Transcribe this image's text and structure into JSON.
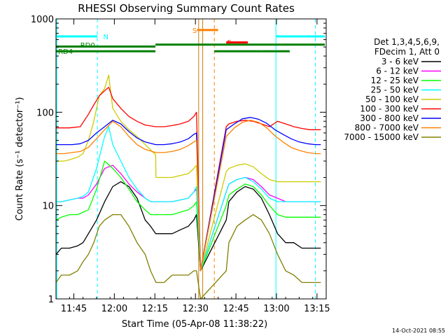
{
  "title": "RHESSI Observing Summary Count Rates",
  "footer_date": "14-Oct-2021 08:55",
  "legend": {
    "header_line1": "Det 1,3,4,5,6,9,",
    "header_line2": "FDecim 1, Att 0"
  },
  "chart_data": {
    "type": "line",
    "title": "RHESSI Observing Summary Count Rates",
    "xlabel": "Start Time (05-Apr-08 11:38:22)",
    "ylabel": "Count Rate (s⁻¹ detector⁻¹)",
    "x_unit": "minutes since 11:38:22",
    "xlim": [
      0,
      100
    ],
    "ylim": [
      1,
      1000
    ],
    "y_scale": "log",
    "x_ticks": [
      {
        "label": "11:45",
        "x": 6.6
      },
      {
        "label": "12:00",
        "x": 21.6
      },
      {
        "label": "12:15",
        "x": 36.6
      },
      {
        "label": "12:30",
        "x": 51.6
      },
      {
        "label": "12:45",
        "x": 66.6
      },
      {
        "label": "13:00",
        "x": 81.6
      },
      {
        "label": "13:15",
        "x": 96.6
      }
    ],
    "y_ticks": [
      {
        "label": "1",
        "y": 1
      },
      {
        "label": "10",
        "y": 10
      },
      {
        "label": "100",
        "y": 100
      },
      {
        "label": "1000",
        "y": 1000
      }
    ],
    "series": [
      {
        "name": "3 - 6 keV",
        "color": "#000000",
        "x": [
          0,
          2,
          5,
          8,
          10,
          12,
          15,
          18,
          21,
          24,
          27,
          30,
          33,
          35,
          36.9,
          37,
          40,
          43,
          46,
          49,
          51,
          52,
          53.5,
          63,
          64,
          67,
          70,
          73,
          76,
          79,
          82,
          85,
          88,
          91,
          94,
          97,
          98
        ],
        "y": [
          3,
          3.5,
          3.5,
          3.7,
          4,
          5,
          7,
          11,
          16,
          18,
          16,
          12,
          7,
          6,
          5,
          5,
          5,
          5,
          5.5,
          6,
          7,
          8,
          2,
          7,
          11,
          14,
          16,
          15,
          12,
          8,
          5,
          4,
          4,
          3.5,
          3.5,
          3.5,
          3.5
        ]
      },
      {
        "name": "6 - 12 keV",
        "color": "#ff00ff",
        "x": [
          0,
          2,
          5,
          8,
          10,
          12,
          15,
          18,
          21,
          24,
          27,
          30,
          33,
          35,
          36.9,
          37,
          40,
          43,
          46,
          49,
          51,
          52,
          53.5,
          63,
          64,
          67,
          70,
          73,
          76,
          79,
          82,
          85,
          88,
          91,
          94,
          97,
          98
        ],
        "y": [
          11,
          11,
          11.5,
          12,
          12,
          13,
          17,
          25,
          27,
          22,
          17,
          14,
          12,
          11,
          11,
          11,
          11,
          11,
          11.5,
          12,
          14,
          15,
          2,
          14,
          17,
          19,
          20,
          19,
          16,
          13,
          12,
          11,
          11,
          11,
          11,
          11,
          11
        ]
      },
      {
        "name": "12 - 25 keV",
        "color": "#00ff00",
        "x": [
          0,
          2,
          5,
          8,
          10,
          12,
          15,
          18,
          21,
          24,
          27,
          30,
          33,
          35,
          36.9,
          37,
          40,
          43,
          46,
          49,
          51,
          52,
          53.5,
          63,
          64,
          67,
          70,
          73,
          76,
          79,
          82,
          85,
          88,
          91,
          94,
          97,
          98
        ],
        "y": [
          7,
          7.5,
          8,
          8,
          8.5,
          9,
          15,
          30,
          25,
          20,
          15,
          11,
          9,
          8,
          8,
          8,
          8,
          8,
          8.5,
          9,
          10,
          11,
          2,
          10,
          13,
          15,
          17,
          16,
          13,
          10,
          8,
          7.5,
          7.5,
          7.5,
          7.5,
          7.5,
          7.5
        ]
      },
      {
        "name": "25 - 50 keV",
        "color": "#00ffff",
        "x": [
          0,
          2,
          5,
          8,
          10,
          12,
          15,
          18,
          19.5,
          21,
          24,
          27,
          30,
          33,
          35,
          36.9,
          37,
          40,
          43,
          46,
          49,
          51,
          52,
          53.5,
          63,
          64,
          67,
          70,
          73,
          76,
          79,
          82,
          85,
          88,
          91,
          94,
          97,
          98
        ],
        "y": [
          11,
          11,
          11.5,
          12,
          12.5,
          14,
          25,
          55,
          70,
          45,
          30,
          20,
          15,
          12,
          11,
          11,
          11,
          11,
          11,
          11.5,
          12,
          14,
          16,
          2,
          14,
          17,
          19,
          20,
          18,
          15,
          12,
          11,
          11,
          11,
          11,
          11,
          11,
          11
        ]
      },
      {
        "name": "50 - 100 keV",
        "color": "#cccc00",
        "x": [
          0,
          3,
          5,
          8,
          10,
          12,
          14,
          16,
          18,
          19.5,
          21,
          24,
          27,
          30,
          33,
          36.9,
          37,
          40,
          43,
          46,
          49,
          51,
          52,
          53.5,
          63,
          64,
          67,
          70,
          73,
          76,
          79,
          82,
          85,
          88,
          91,
          94,
          97,
          98
        ],
        "y": [
          30,
          30,
          31,
          33,
          36,
          50,
          80,
          150,
          180,
          250,
          110,
          80,
          65,
          55,
          45,
          35,
          20,
          20,
          20,
          21,
          22,
          25,
          27,
          2,
          23,
          25,
          27,
          28,
          26,
          22,
          19,
          18,
          18,
          18,
          18,
          18,
          18,
          18
        ]
      },
      {
        "name": "100 - 300 keV",
        "color": "#ff0000",
        "x": [
          0,
          2,
          5,
          7,
          9,
          12,
          14,
          16,
          18,
          19.5,
          21,
          24,
          27,
          30,
          33,
          36.9,
          37,
          40,
          43,
          46,
          49,
          51,
          52,
          53.5,
          63,
          64,
          67,
          70,
          73,
          76,
          79,
          82,
          85,
          88,
          91,
          94,
          97,
          98
        ],
        "y": [
          68,
          68,
          68,
          69,
          70,
          95,
          120,
          150,
          170,
          185,
          140,
          110,
          90,
          80,
          73,
          70,
          70,
          70,
          72,
          75,
          80,
          90,
          100,
          2,
          70,
          75,
          80,
          82,
          80,
          75,
          70,
          80,
          75,
          70,
          67,
          65,
          65,
          65
        ]
      },
      {
        "name": "300 - 800 keV",
        "color": "#0000ff",
        "x": [
          0,
          3,
          6,
          9,
          12,
          15,
          18,
          21,
          24,
          27,
          30,
          33,
          36.9,
          40,
          43,
          46,
          49,
          51,
          52,
          53.5,
          63,
          66,
          69,
          72,
          75,
          78,
          81,
          84,
          87,
          90,
          93,
          96,
          98
        ],
        "y": [
          45,
          45,
          45,
          46,
          50,
          60,
          70,
          82,
          75,
          62,
          53,
          48,
          45,
          45,
          46,
          48,
          52,
          58,
          60,
          2,
          65,
          75,
          85,
          88,
          84,
          76,
          65,
          58,
          52,
          48,
          46,
          45,
          45
        ]
      },
      {
        "name": "800 - 7000 keV",
        "color": "#ff8000",
        "x": [
          0,
          3,
          6,
          9,
          12,
          15,
          18,
          21,
          24,
          27,
          30,
          33,
          36.9,
          40,
          43,
          46,
          49,
          51,
          52,
          53.5,
          63,
          66,
          69,
          72,
          75,
          78,
          81,
          84,
          87,
          90,
          93,
          96,
          98
        ],
        "y": [
          36,
          36,
          37,
          38,
          42,
          52,
          65,
          80,
          70,
          55,
          45,
          40,
          37,
          37,
          38,
          40,
          44,
          48,
          50,
          2,
          55,
          68,
          78,
          82,
          78,
          68,
          56,
          48,
          42,
          39,
          37,
          36,
          36
        ]
      },
      {
        "name": "7000 - 15000 keV",
        "color": "#808000",
        "x": [
          0,
          2,
          5,
          8,
          10,
          12,
          14,
          16,
          18,
          21,
          24,
          27,
          30,
          33,
          35,
          37,
          40,
          43,
          46,
          49,
          51,
          52,
          53.5,
          63,
          64,
          67,
          70,
          73,
          76,
          79,
          82,
          85,
          88,
          91,
          94,
          97,
          98
        ],
        "y": [
          1.5,
          1.8,
          1.8,
          2,
          2.5,
          3,
          4,
          6,
          7,
          8,
          8,
          6,
          4,
          3,
          2,
          1.5,
          1.5,
          1.8,
          1.8,
          1.8,
          2,
          2,
          1,
          2,
          4,
          6,
          7,
          8,
          7,
          5,
          3,
          2,
          1.8,
          1.5,
          1.5,
          1.5,
          1.5
        ]
      }
    ],
    "vertical_markers": [
      {
        "x": 0.3,
        "color": "#00ffff",
        "style": "solid"
      },
      {
        "x": 15.3,
        "color": "#00ffff",
        "style": "dashed"
      },
      {
        "x": 52.8,
        "color": "#cc7a00",
        "style": "solid"
      },
      {
        "x": 54.3,
        "color": "#cc7a00",
        "style": "solid"
      },
      {
        "x": 58.6,
        "color": "#ff8000",
        "style": "dashed"
      },
      {
        "x": 81.4,
        "color": "#00ffff",
        "style": "solid"
      },
      {
        "x": 96.0,
        "color": "#00ffff",
        "style": "dashed"
      }
    ],
    "annotations": [
      {
        "label": "N",
        "color": "#00ffff",
        "label_x": 17.5,
        "label_y": 650,
        "segments": [
          [
            0.3,
            15.3,
            650
          ],
          [
            81.4,
            99.5,
            650
          ]
        ]
      },
      {
        "label": "S",
        "color": "#ff8000",
        "label_x": 50.5,
        "label_y": 760,
        "segments": [
          [
            52.2,
            60.0,
            760
          ]
        ]
      },
      {
        "label": "F",
        "color": "#ff0000",
        "label_x": 63.3,
        "label_y": 560,
        "segments": [
          [
            63.0,
            71.0,
            560
          ]
        ]
      },
      {
        "label": "RD0",
        "color": "#008000",
        "label_x": 9.0,
        "label_y": 530,
        "segments": [
          [
            0.0,
            36.8,
            505
          ],
          [
            36.8,
            60.0,
            530
          ],
          [
            60.0,
            83.5,
            530
          ],
          [
            83.5,
            99.5,
            530
          ]
        ]
      },
      {
        "label": "RD4",
        "color": "#008000",
        "label_x": 0.8,
        "label_y": 450,
        "segments": [
          [
            0.0,
            36.8,
            450
          ],
          [
            58.6,
            76.0,
            450
          ],
          [
            76.0,
            86.5,
            450
          ]
        ]
      }
    ]
  }
}
